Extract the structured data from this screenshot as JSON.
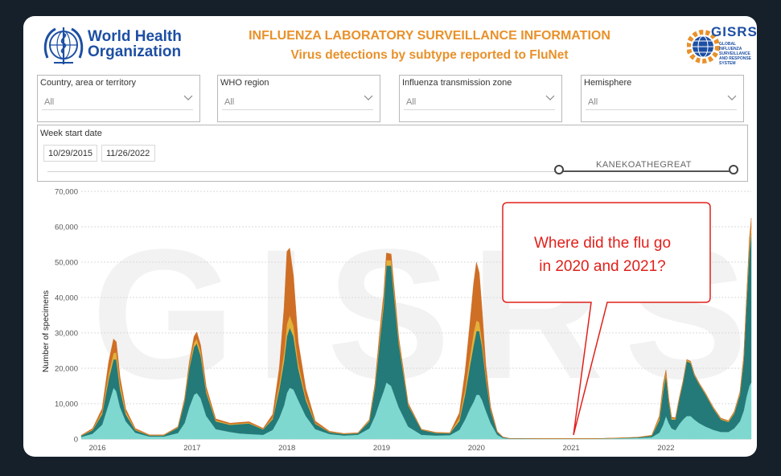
{
  "header": {
    "org_name": "World Health Organization",
    "title": "INFLUENZA LABORATORY SURVEILLANCE INFORMATION",
    "subtitle": "Virus detections by subtype reported to FluNet",
    "partner_logo_name": "GISRS",
    "partner_logo_tagline": "GLOBAL INFLUENZA SURVEILLANCE AND RESPONSE SYSTEM"
  },
  "filters": [
    {
      "label": "Country, area or territory",
      "value": "All"
    },
    {
      "label": "WHO region",
      "value": "All"
    },
    {
      "label": "Influenza transmission zone",
      "value": "All"
    },
    {
      "label": "Hemisphere",
      "value": "All"
    }
  ],
  "date_filter": {
    "label": "Week start date",
    "start": "10/29/2015",
    "end": "11/26/2022",
    "credit": "KANEKOATHEGREAT"
  },
  "callout": {
    "text_line1": "Where did the flu go",
    "text_line2": "in 2020 and 2021?"
  },
  "colors": {
    "background": "#15202b",
    "brand_orange": "#e8912a",
    "who_blue": "#1d4fa3",
    "callout_red": "#e0201b",
    "layer_light_teal": "#7fd8d0",
    "layer_dark_teal": "#237a78",
    "layer_yellow": "#e2b13a",
    "layer_orange": "#cf6e25"
  },
  "chart_data": {
    "type": "area",
    "ylabel": "Number of specimens",
    "ylim": [
      0,
      70000
    ],
    "yticks": [
      0,
      10000,
      20000,
      30000,
      40000,
      50000,
      60000,
      70000
    ],
    "ytick_labels": [
      "0",
      "10,000",
      "20,000",
      "30,000",
      "40,000",
      "50,000",
      "60,000",
      "70,000"
    ],
    "xlim": [
      2015.83,
      2022.9
    ],
    "xticks": [
      2016,
      2017,
      2018,
      2019,
      2020,
      2021,
      2022
    ],
    "xtick_labels": [
      "2016",
      "2017",
      "2018",
      "2019",
      "2020",
      "2021",
      "2022"
    ],
    "grid": true,
    "stacked": true,
    "layer_colors": [
      "#7fd8d0",
      "#237a78",
      "#e2b13a",
      "#cf6e25"
    ],
    "x": [
      2015.83,
      2015.95,
      2016.05,
      2016.12,
      2016.17,
      2016.2,
      2016.24,
      2016.3,
      2016.4,
      2016.55,
      2016.7,
      2016.85,
      2016.92,
      2016.97,
      2017.02,
      2017.05,
      2017.09,
      2017.15,
      2017.25,
      2017.4,
      2017.5,
      2017.6,
      2017.75,
      2017.85,
      2017.92,
      2017.97,
      2018.0,
      2018.03,
      2018.07,
      2018.12,
      2018.2,
      2018.3,
      2018.45,
      2018.6,
      2018.75,
      2018.87,
      2018.93,
      2018.98,
      2019.02,
      2019.05,
      2019.1,
      2019.18,
      2019.28,
      2019.42,
      2019.57,
      2019.72,
      2019.82,
      2019.88,
      2019.93,
      2019.97,
      2020.0,
      2020.03,
      2020.06,
      2020.1,
      2020.15,
      2020.22,
      2020.28,
      2020.35,
      2020.5,
      2020.7,
      2020.9,
      2021.1,
      2021.3,
      2021.5,
      2021.7,
      2021.85,
      2021.93,
      2021.97,
      2022.0,
      2022.03,
      2022.06,
      2022.1,
      2022.14,
      2022.18,
      2022.22,
      2022.26,
      2022.3,
      2022.35,
      2022.42,
      2022.5,
      2022.58,
      2022.66,
      2022.72,
      2022.78,
      2022.82,
      2022.85,
      2022.88,
      2022.9
    ],
    "series": [
      {
        "values": [
          600,
          1500,
          4000,
          10000,
          14500,
          13500,
          9000,
          5000,
          1800,
          700,
          700,
          1700,
          4500,
          9000,
          12500,
          13000,
          11500,
          6500,
          2800,
          2000,
          1600,
          1400,
          1200,
          2600,
          6000,
          9500,
          13000,
          14500,
          14000,
          11000,
          6500,
          2800,
          1400,
          1000,
          1200,
          3000,
          6500,
          10500,
          13500,
          16000,
          15000,
          9000,
          3500,
          1200,
          1000,
          1100,
          2600,
          5500,
          8500,
          10500,
          12500,
          12500,
          11000,
          8000,
          4500,
          1200,
          300,
          100,
          100,
          80,
          80,
          80,
          100,
          200,
          300,
          500,
          1800,
          4000,
          6500,
          4500,
          3000,
          2500,
          4200,
          5500,
          6500,
          6500,
          5500,
          4500,
          3500,
          2600,
          2000,
          2000,
          3000,
          5000,
          8000,
          12000,
          15000,
          16000
        ]
      },
      {
        "values": [
          300,
          1000,
          3000,
          7000,
          8000,
          9000,
          5000,
          2000,
          700,
          300,
          300,
          1500,
          6000,
          11000,
          13500,
          14000,
          12000,
          6500,
          2200,
          2000,
          2600,
          3000,
          1500,
          3000,
          8000,
          12500,
          16000,
          17000,
          15000,
          9000,
          4500,
          1500,
          500,
          400,
          400,
          2000,
          8000,
          17000,
          24000,
          33000,
          34000,
          18000,
          6000,
          1400,
          700,
          500,
          2500,
          7000,
          12000,
          16000,
          18000,
          18000,
          15000,
          9000,
          3500,
          700,
          200,
          50,
          50,
          30,
          30,
          30,
          30,
          80,
          150,
          400,
          3500,
          9500,
          11500,
          6000,
          2500,
          3000,
          7000,
          10500,
          15500,
          15000,
          12500,
          11000,
          9000,
          6000,
          3500,
          2800,
          4200,
          7500,
          14000,
          26000,
          38000,
          42000
        ]
      },
      {
        "values": [
          100,
          200,
          600,
          1500,
          1800,
          2000,
          1500,
          700,
          200,
          100,
          100,
          150,
          400,
          800,
          1200,
          1300,
          1200,
          700,
          300,
          200,
          200,
          200,
          150,
          400,
          1500,
          2500,
          3500,
          3500,
          3000,
          1500,
          800,
          200,
          100,
          100,
          100,
          300,
          700,
          1200,
          1500,
          1600,
          1500,
          900,
          300,
          100,
          100,
          100,
          800,
          1500,
          2500,
          3500,
          3000,
          2500,
          1500,
          800,
          300,
          100,
          50,
          20,
          20,
          10,
          10,
          10,
          10,
          20,
          30,
          100,
          700,
          1100,
          800,
          500,
          400,
          300,
          300,
          300,
          300,
          300,
          200,
          200,
          200,
          200,
          200,
          200,
          300,
          400,
          700,
          1000,
          1500,
          1800
        ]
      },
      {
        "values": [
          100,
          300,
          1000,
          3500,
          4000,
          3000,
          2000,
          800,
          300,
          100,
          100,
          150,
          500,
          1000,
          1800,
          2000,
          1800,
          1000,
          400,
          300,
          300,
          300,
          200,
          1000,
          4500,
          12500,
          20500,
          19000,
          14000,
          6000,
          2500,
          600,
          200,
          100,
          100,
          200,
          600,
          1800,
          1800,
          2000,
          1800,
          1000,
          400,
          100,
          100,
          100,
          1500,
          5000,
          9500,
          14000,
          16500,
          14000,
          9000,
          3000,
          800,
          200,
          50,
          20,
          20,
          10,
          10,
          10,
          10,
          20,
          30,
          100,
          500,
          1000,
          800,
          500,
          300,
          200,
          200,
          200,
          200,
          200,
          200,
          200,
          200,
          200,
          200,
          200,
          300,
          400,
          800,
          1000,
          2000,
          2700
        ]
      }
    ]
  }
}
